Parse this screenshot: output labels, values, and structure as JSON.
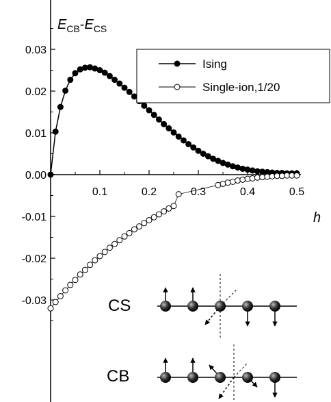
{
  "chart_data": {
    "type": "scatter",
    "title": "",
    "ylabel": {
      "main": "E",
      "sub1": "CB",
      "dash": "-",
      "main2": "E",
      "sub2": "CS"
    },
    "xlabel": "h",
    "xlim": [
      0,
      0.5
    ],
    "ylim": [
      -0.035,
      0.035
    ],
    "x_ticks": [
      0.1,
      0.2,
      0.3,
      0.4,
      0.5
    ],
    "x_tick_labels": [
      "0.1",
      "0.2",
      "0.3",
      "0.4",
      "0.5"
    ],
    "y_ticks": [
      0.03,
      0.02,
      0.01,
      0.0,
      -0.01,
      -0.02,
      -0.03
    ],
    "y_tick_labels": [
      "0.03",
      "0.02",
      "0.01",
      "0.00",
      "-0.01",
      "-0.02",
      "-0.03"
    ],
    "legend_position": "top-right",
    "series": [
      {
        "name": "Ising",
        "marker": "filled-circle",
        "color": "#000000",
        "x": [
          0.0,
          0.01,
          0.02,
          0.03,
          0.04,
          0.05,
          0.06,
          0.07,
          0.08,
          0.09,
          0.1,
          0.11,
          0.12,
          0.13,
          0.14,
          0.15,
          0.16,
          0.17,
          0.18,
          0.19,
          0.2,
          0.21,
          0.22,
          0.23,
          0.24,
          0.25,
          0.26,
          0.27,
          0.28,
          0.29,
          0.3,
          0.31,
          0.32,
          0.33,
          0.34,
          0.35,
          0.36,
          0.37,
          0.38,
          0.39,
          0.4,
          0.41,
          0.42,
          0.43,
          0.44,
          0.45,
          0.46,
          0.47,
          0.48,
          0.49,
          0.5
        ],
        "y": [
          0.0,
          0.0103,
          0.0162,
          0.0201,
          0.0227,
          0.0243,
          0.0252,
          0.0256,
          0.0257,
          0.0254,
          0.025,
          0.0244,
          0.0236,
          0.0227,
          0.0218,
          0.0208,
          0.0198,
          0.0187,
          0.0176,
          0.0165,
          0.0154,
          0.0143,
          0.0132,
          0.0121,
          0.0111,
          0.0101,
          0.0091,
          0.0082,
          0.0073,
          0.0065,
          0.0057,
          0.005,
          0.0044,
          0.0038,
          0.0033,
          0.0028,
          0.0024,
          0.002,
          0.0017,
          0.0014,
          0.0012,
          0.001,
          0.0008,
          0.0007,
          0.0006,
          0.0005,
          0.0004,
          0.0004,
          0.0003,
          0.0003,
          0.0003
        ]
      },
      {
        "name": "Single-ion,1/20",
        "marker": "open-circle",
        "color": "#000000",
        "x": [
          0.0,
          0.01,
          0.02,
          0.03,
          0.04,
          0.05,
          0.06,
          0.07,
          0.08,
          0.09,
          0.1,
          0.11,
          0.12,
          0.13,
          0.14,
          0.15,
          0.16,
          0.17,
          0.18,
          0.19,
          0.2,
          0.21,
          0.22,
          0.23,
          0.24,
          0.25,
          0.26,
          0.34,
          0.35,
          0.36,
          0.37,
          0.38,
          0.39,
          0.4,
          0.41,
          0.42,
          0.43,
          0.44,
          0.45,
          0.46,
          0.47,
          0.48,
          0.49,
          0.5
        ],
        "y": [
          -0.032,
          -0.0305,
          -0.0291,
          -0.0277,
          -0.0264,
          -0.0252,
          -0.0239,
          -0.0228,
          -0.0216,
          -0.0205,
          -0.0195,
          -0.0185,
          -0.0175,
          -0.0166,
          -0.0157,
          -0.0148,
          -0.014,
          -0.0131,
          -0.0124,
          -0.0116,
          -0.0109,
          -0.0102,
          -0.0095,
          -0.0088,
          -0.0081,
          -0.0075,
          -0.0047,
          -0.0025,
          -0.0022,
          -0.0019,
          -0.0017,
          -0.0014,
          -0.0012,
          -0.001,
          -0.0009,
          -0.0007,
          -0.0006,
          -0.0005,
          -0.0004,
          -0.0003,
          -0.0003,
          -0.0002,
          -0.0002,
          -0.0002
        ]
      }
    ],
    "inset": {
      "labels": [
        "CS",
        "CB"
      ]
    }
  }
}
